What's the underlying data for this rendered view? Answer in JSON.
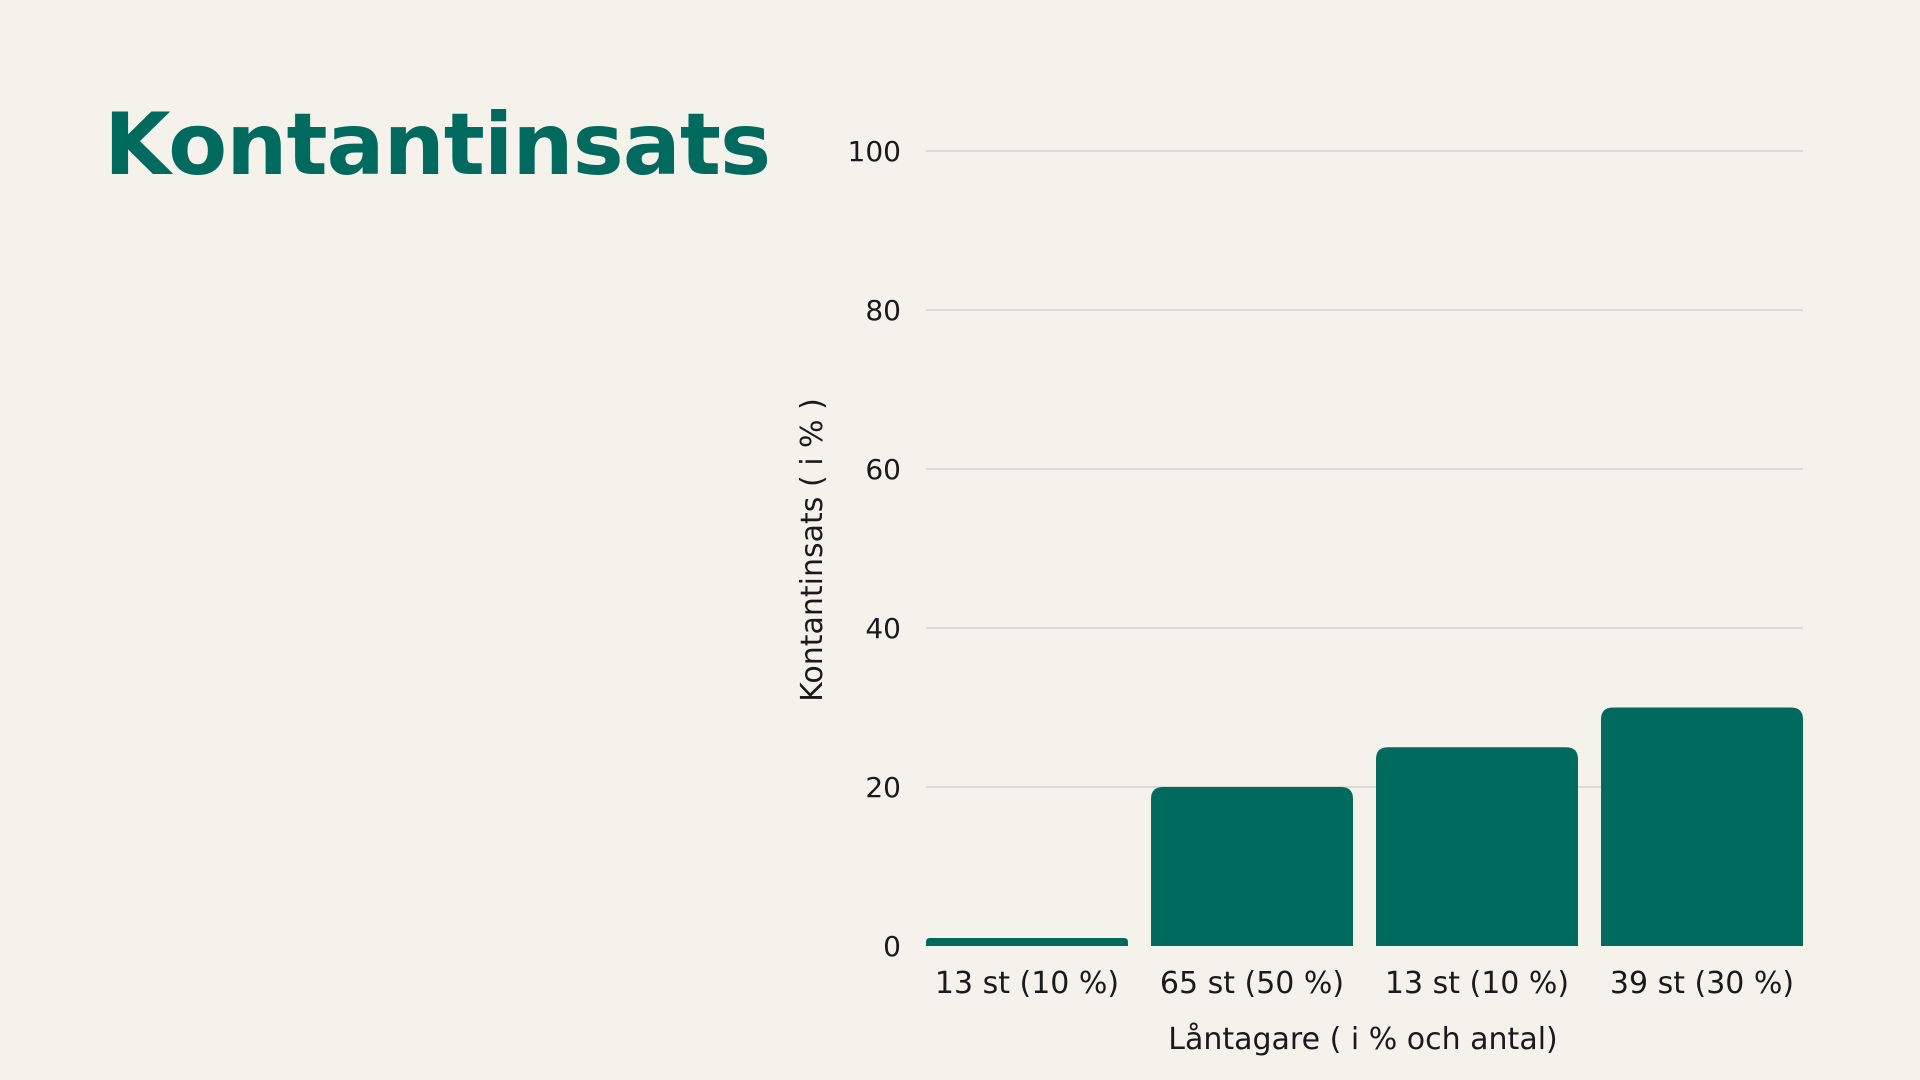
{
  "title": "Kontantinsats",
  "colors": {
    "background": "#f5f2ec",
    "accent": "#006a5e",
    "grid": "#d5d3cd",
    "text": "#1a1a1a"
  },
  "chart_data": {
    "type": "bar",
    "title": "",
    "xlabel": "Låntagare ( i % och antal)",
    "ylabel": "Kontantinsats ( i % )",
    "categories": [
      "13 st (10 %)",
      "65 st (50 %)",
      "13 st (10 %)",
      "39 st (30 %)"
    ],
    "values": [
      1,
      20,
      25,
      30
    ],
    "ylim": [
      0,
      100
    ],
    "yticks": [
      0,
      20,
      40,
      60,
      80,
      100
    ],
    "grid": true,
    "legend": "none"
  }
}
